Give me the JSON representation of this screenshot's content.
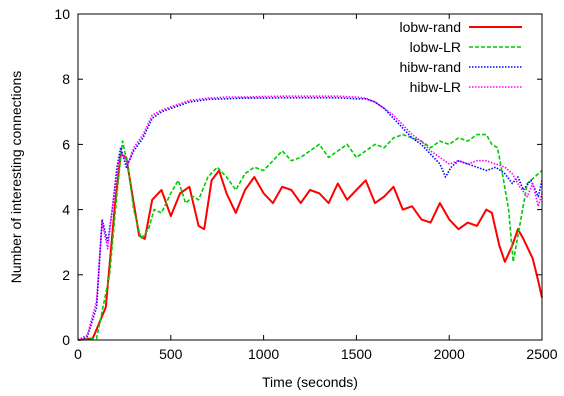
{
  "chart_data": {
    "type": "line",
    "title": "",
    "xlabel": "Time (seconds)",
    "ylabel": "Number of interesting connections",
    "xlim": [
      0,
      2500
    ],
    "ylim": [
      0,
      10
    ],
    "xticks": [
      0,
      500,
      1000,
      1500,
      2000,
      2500
    ],
    "yticks": [
      0,
      2,
      4,
      6,
      8,
      10
    ],
    "grid": false,
    "legend_position": "top-right",
    "series": [
      {
        "name": "lobw-rand",
        "color": "#ff0000",
        "dash": "solid",
        "points": [
          [
            0,
            0
          ],
          [
            80,
            0.05
          ],
          [
            150,
            1
          ],
          [
            200,
            4.2
          ],
          [
            230,
            5.7
          ],
          [
            260,
            5.6
          ],
          [
            300,
            4.2
          ],
          [
            330,
            3.2
          ],
          [
            360,
            3.1
          ],
          [
            400,
            4.3
          ],
          [
            450,
            4.6
          ],
          [
            500,
            3.8
          ],
          [
            550,
            4.5
          ],
          [
            600,
            4.7
          ],
          [
            650,
            3.5
          ],
          [
            680,
            3.4
          ],
          [
            720,
            4.9
          ],
          [
            760,
            5.2
          ],
          [
            800,
            4.5
          ],
          [
            850,
            3.9
          ],
          [
            900,
            4.6
          ],
          [
            950,
            5.0
          ],
          [
            1000,
            4.5
          ],
          [
            1050,
            4.2
          ],
          [
            1100,
            4.7
          ],
          [
            1150,
            4.6
          ],
          [
            1200,
            4.2
          ],
          [
            1250,
            4.6
          ],
          [
            1300,
            4.5
          ],
          [
            1350,
            4.2
          ],
          [
            1400,
            4.8
          ],
          [
            1450,
            4.3
          ],
          [
            1500,
            4.6
          ],
          [
            1550,
            4.9
          ],
          [
            1600,
            4.2
          ],
          [
            1650,
            4.4
          ],
          [
            1700,
            4.7
          ],
          [
            1750,
            4.0
          ],
          [
            1800,
            4.1
          ],
          [
            1850,
            3.7
          ],
          [
            1900,
            3.6
          ],
          [
            1950,
            4.2
          ],
          [
            2000,
            3.7
          ],
          [
            2050,
            3.4
          ],
          [
            2100,
            3.6
          ],
          [
            2150,
            3.5
          ],
          [
            2200,
            4.0
          ],
          [
            2230,
            3.9
          ],
          [
            2270,
            2.9
          ],
          [
            2300,
            2.4
          ],
          [
            2340,
            2.9
          ],
          [
            2370,
            3.4
          ],
          [
            2400,
            3.1
          ],
          [
            2450,
            2.5
          ],
          [
            2480,
            1.8
          ],
          [
            2500,
            1.3
          ]
        ]
      },
      {
        "name": "lobw-LR",
        "color": "#00cc00",
        "dash": "dashed",
        "points": [
          [
            0,
            0
          ],
          [
            100,
            0.05
          ],
          [
            170,
            2
          ],
          [
            210,
            4.5
          ],
          [
            240,
            6.1
          ],
          [
            270,
            5.3
          ],
          [
            300,
            4.0
          ],
          [
            340,
            3.1
          ],
          [
            380,
            3.4
          ],
          [
            410,
            4.0
          ],
          [
            450,
            3.9
          ],
          [
            500,
            4.5
          ],
          [
            540,
            4.9
          ],
          [
            580,
            4.2
          ],
          [
            620,
            4.4
          ],
          [
            650,
            4.3
          ],
          [
            700,
            5.0
          ],
          [
            750,
            5.3
          ],
          [
            800,
            5.0
          ],
          [
            850,
            4.6
          ],
          [
            900,
            5.1
          ],
          [
            950,
            5.3
          ],
          [
            1000,
            5.2
          ],
          [
            1050,
            5.5
          ],
          [
            1100,
            5.8
          ],
          [
            1150,
            5.5
          ],
          [
            1200,
            5.6
          ],
          [
            1250,
            5.8
          ],
          [
            1300,
            6.0
          ],
          [
            1350,
            5.6
          ],
          [
            1400,
            5.8
          ],
          [
            1450,
            6.0
          ],
          [
            1500,
            5.6
          ],
          [
            1550,
            5.8
          ],
          [
            1600,
            6.0
          ],
          [
            1650,
            5.9
          ],
          [
            1700,
            6.2
          ],
          [
            1750,
            6.3
          ],
          [
            1800,
            6.2
          ],
          [
            1850,
            6.1
          ],
          [
            1900,
            5.9
          ],
          [
            1950,
            6.1
          ],
          [
            2000,
            6.0
          ],
          [
            2050,
            6.2
          ],
          [
            2100,
            6.1
          ],
          [
            2150,
            6.3
          ],
          [
            2200,
            6.3
          ],
          [
            2230,
            6.0
          ],
          [
            2260,
            5.9
          ],
          [
            2290,
            5.0
          ],
          [
            2320,
            4.0
          ],
          [
            2345,
            2.4
          ],
          [
            2380,
            3.5
          ],
          [
            2420,
            4.8
          ],
          [
            2460,
            5.0
          ],
          [
            2500,
            5.2
          ]
        ]
      },
      {
        "name": "hibw-rand",
        "color": "#0000ff",
        "dash": "dotted",
        "points": [
          [
            0,
            0
          ],
          [
            50,
            0.1
          ],
          [
            100,
            1.0
          ],
          [
            130,
            3.7
          ],
          [
            160,
            3.0
          ],
          [
            185,
            4.0
          ],
          [
            210,
            5.3
          ],
          [
            230,
            5.9
          ],
          [
            260,
            5.3
          ],
          [
            300,
            5.8
          ],
          [
            350,
            6.2
          ],
          [
            400,
            6.8
          ],
          [
            450,
            7.0
          ],
          [
            500,
            7.1
          ],
          [
            600,
            7.3
          ],
          [
            700,
            7.38
          ],
          [
            800,
            7.4
          ],
          [
            900,
            7.42
          ],
          [
            1000,
            7.42
          ],
          [
            1100,
            7.43
          ],
          [
            1200,
            7.43
          ],
          [
            1300,
            7.43
          ],
          [
            1400,
            7.43
          ],
          [
            1500,
            7.4
          ],
          [
            1550,
            7.4
          ],
          [
            1600,
            7.3
          ],
          [
            1650,
            7.1
          ],
          [
            1700,
            6.8
          ],
          [
            1750,
            6.5
          ],
          [
            1800,
            6.2
          ],
          [
            1850,
            6.0
          ],
          [
            1900,
            5.7
          ],
          [
            1950,
            5.4
          ],
          [
            1980,
            5.0
          ],
          [
            2010,
            5.3
          ],
          [
            2050,
            5.5
          ],
          [
            2100,
            5.4
          ],
          [
            2150,
            5.3
          ],
          [
            2200,
            5.2
          ],
          [
            2250,
            5.3
          ],
          [
            2300,
            5.1
          ],
          [
            2340,
            4.8
          ],
          [
            2370,
            5.0
          ],
          [
            2400,
            4.6
          ],
          [
            2440,
            4.9
          ],
          [
            2480,
            4.4
          ],
          [
            2500,
            4.9
          ]
        ]
      },
      {
        "name": "hibw-LR",
        "color": "#ff00ff",
        "dash": "dotted",
        "points": [
          [
            0,
            0
          ],
          [
            50,
            0.15
          ],
          [
            100,
            1.2
          ],
          [
            130,
            3.6
          ],
          [
            160,
            2.8
          ],
          [
            190,
            4.3
          ],
          [
            220,
            5.5
          ],
          [
            240,
            5.7
          ],
          [
            270,
            5.4
          ],
          [
            300,
            5.9
          ],
          [
            350,
            6.3
          ],
          [
            400,
            6.9
          ],
          [
            450,
            7.05
          ],
          [
            500,
            7.15
          ],
          [
            600,
            7.35
          ],
          [
            700,
            7.42
          ],
          [
            800,
            7.45
          ],
          [
            900,
            7.45
          ],
          [
            1000,
            7.47
          ],
          [
            1100,
            7.48
          ],
          [
            1200,
            7.48
          ],
          [
            1300,
            7.48
          ],
          [
            1400,
            7.48
          ],
          [
            1500,
            7.45
          ],
          [
            1550,
            7.42
          ],
          [
            1600,
            7.3
          ],
          [
            1650,
            7.1
          ],
          [
            1700,
            6.9
          ],
          [
            1750,
            6.6
          ],
          [
            1800,
            6.3
          ],
          [
            1850,
            6.1
          ],
          [
            1900,
            5.8
          ],
          [
            1950,
            5.6
          ],
          [
            2000,
            5.4
          ],
          [
            2050,
            5.5
          ],
          [
            2100,
            5.4
          ],
          [
            2150,
            5.5
          ],
          [
            2200,
            5.5
          ],
          [
            2250,
            5.4
          ],
          [
            2300,
            5.3
          ],
          [
            2340,
            5.1
          ],
          [
            2380,
            4.7
          ],
          [
            2420,
            4.4
          ],
          [
            2450,
            4.8
          ],
          [
            2480,
            4.1
          ],
          [
            2500,
            4.5
          ]
        ]
      }
    ]
  }
}
